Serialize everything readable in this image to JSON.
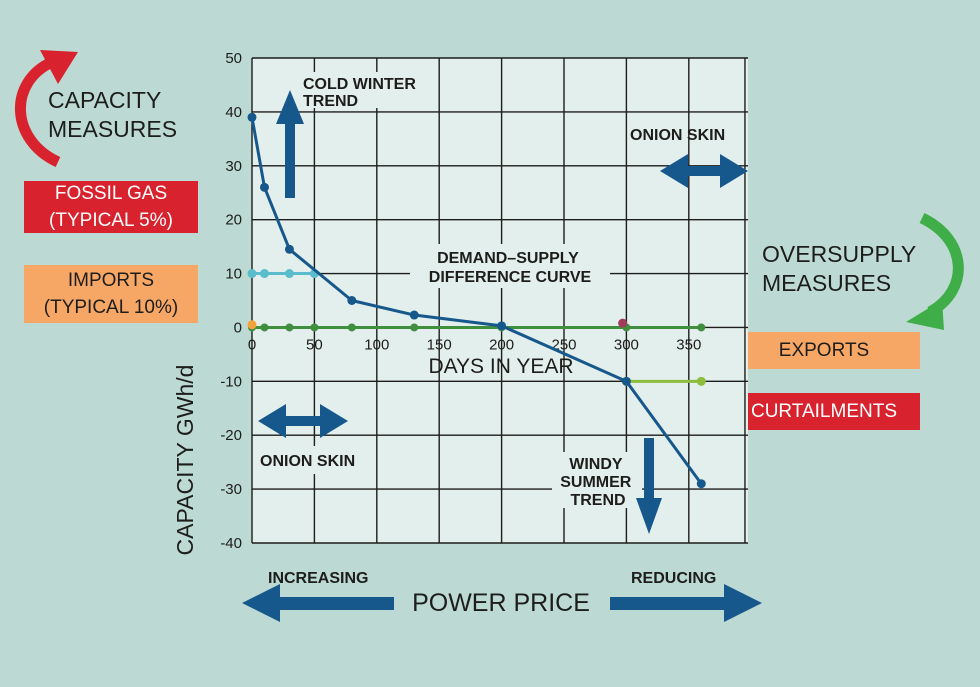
{
  "left_panel": {
    "capacity_title": [
      "CAPACITY",
      "MEASURES"
    ],
    "fossil_gas": [
      "FOSSIL GAS",
      "(TYPICAL 5%)"
    ],
    "imports": [
      "IMPORTS",
      "(TYPICAL 10%)"
    ]
  },
  "right_panel": {
    "oversupply_title": [
      "OVERSUPPLY",
      "MEASURES"
    ],
    "exports": "EXPORTS",
    "curtailments": "CURTAILMENTS"
  },
  "bottom": {
    "increasing": "INCREASING",
    "reducing": "REDUCING",
    "power_price": "POWER PRICE"
  },
  "colors": {
    "background": "#bcdad3",
    "plot_bg": "#e3efec",
    "main_curve": "#17588c",
    "imports_line": "#5bbccc",
    "zero_line": "#3f8f3f",
    "curtail_line": "#8dbd3c",
    "red_box": "#d8232f",
    "orange_box": "#f6a766",
    "green_arrow": "#3fae49"
  },
  "chart_data": {
    "type": "line",
    "xlabel": "DAYS IN YEAR",
    "ylabel": "CAPACITY GWh/d",
    "xlim": [
      0,
      395
    ],
    "ylim": [
      -40,
      50
    ],
    "x_ticks": [
      0,
      50,
      100,
      150,
      200,
      250,
      300,
      350
    ],
    "y_ticks": [
      50,
      40,
      30,
      20,
      10,
      0,
      -10,
      -20,
      -30,
      -40
    ],
    "grid": true,
    "series": [
      {
        "name": "DEMAND–SUPPLY DIFFERENCE CURVE",
        "x": [
          0,
          10,
          30,
          80,
          130,
          200,
          300,
          360
        ],
        "y": [
          39,
          26,
          14.5,
          5,
          2.3,
          0.3,
          -10,
          -29
        ]
      },
      {
        "x": [
          0,
          10,
          30,
          50
        ],
        "y": [
          10,
          10,
          10,
          10
        ]
      },
      {
        "x": [
          0,
          10,
          30,
          50,
          80,
          130,
          200,
          300,
          360
        ],
        "y": [
          0,
          0,
          0,
          0,
          0,
          0,
          0,
          0,
          0
        ]
      },
      {
        "x": [
          300,
          360
        ],
        "y": [
          -10,
          -10
        ]
      }
    ],
    "extra_points": [
      {
        "x": 0,
        "y": 0.5,
        "color": "#f2a13b"
      },
      {
        "x": 297,
        "y": 0.8,
        "color": "#a23a5a"
      }
    ],
    "annotations": {
      "cold_winter_trend": [
        "COLD WINTER",
        "TREND"
      ],
      "onion_skin_top": "ONION SKIN",
      "onion_skin_bottom": "ONION SKIN",
      "curve_label": [
        "DEMAND–SUPPLY",
        "DIFFERENCE CURVE"
      ],
      "windy_summer_trend": [
        "WINDY",
        "SUMMER",
        "TREND"
      ]
    }
  }
}
